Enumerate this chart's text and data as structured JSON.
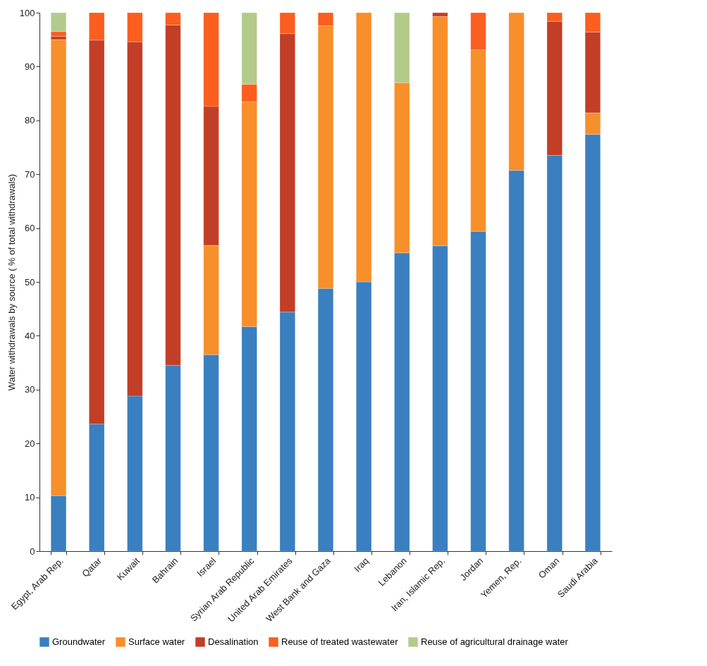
{
  "chart_data": {
    "type": "bar",
    "stacked": true,
    "ylabel": "Water withdrawals by source ( % of total withdrawals)",
    "categories": [
      "Egypt, Arab Rep.",
      "Qatar",
      "Kuwait",
      "Bahrain",
      "Israel",
      "Syrian Arab Republic",
      "United Arab Emirates",
      "West Bank and Gaza",
      "Iraq",
      "Lebanon",
      "Iran, Islamic Rep.",
      "Jordan",
      "Yemen,  Rep.",
      "Oman",
      "Saudi Arabia"
    ],
    "series": [
      {
        "name": "Groundwater",
        "color": "#3a7fbf",
        "values": [
          10.3,
          23.6,
          28.8,
          34.5,
          36.5,
          41.7,
          44.4,
          48.8,
          50.0,
          55.4,
          56.7,
          59.4,
          70.7,
          73.5,
          77.4
        ]
      },
      {
        "name": "Surface water",
        "color": "#f78f2a",
        "values": [
          84.7,
          null,
          null,
          null,
          20.3,
          41.8,
          null,
          48.8,
          50.0,
          31.6,
          42.6,
          33.7,
          29.3,
          null,
          4.0
        ]
      },
      {
        "name": "Desalination",
        "color": "#c23e26",
        "values": [
          0.6,
          71.3,
          65.8,
          63.2,
          25.8,
          null,
          51.7,
          null,
          null,
          null,
          0.7,
          null,
          null,
          24.9,
          15.0
        ]
      },
      {
        "name": "Reuse of treated wastewater",
        "color": "#fb5e1e",
        "values": [
          0.9,
          5.1,
          5.4,
          2.3,
          17.4,
          3.2,
          3.9,
          2.4,
          null,
          null,
          null,
          6.9,
          null,
          1.6,
          3.6
        ]
      },
      {
        "name": "Reuse of agricultural drainage water",
        "color": "#b2cb8a",
        "values": [
          3.5,
          null,
          null,
          null,
          null,
          13.3,
          null,
          null,
          null,
          13.0,
          null,
          null,
          null,
          null,
          null
        ]
      }
    ],
    "ylim": [
      0,
      100
    ],
    "yticks": [
      0,
      10,
      20,
      30,
      40,
      50,
      60,
      70,
      80,
      90,
      100
    ],
    "grid": false,
    "legend": "bottom"
  }
}
